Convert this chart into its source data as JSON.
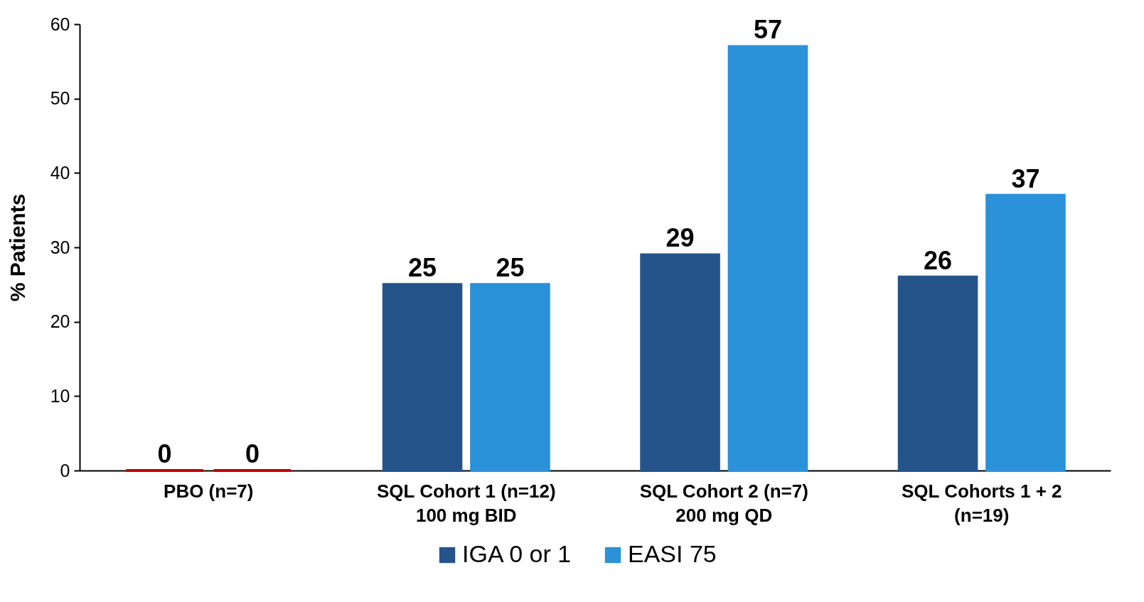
{
  "chart_data": {
    "type": "bar",
    "ylabel": "% Patients",
    "categories": [
      "PBO (n=7)",
      "SQL Cohort 1 (n=12)\n100 mg BID",
      "SQL Cohort 2 (n=7)\n200 mg QD",
      "SQL Cohorts 1 + 2\n(n=19)"
    ],
    "series": [
      {
        "name": "IGA 0 or 1",
        "color": "#25548a",
        "colors": [
          "#c00000",
          "#25548a",
          "#25548a",
          "#25548a"
        ],
        "values": [
          0,
          25,
          29,
          26
        ]
      },
      {
        "name": "EASI 75",
        "color": "#2b91d8",
        "colors": [
          "#c00000",
          "#2b91d8",
          "#2b91d8",
          "#2b91d8"
        ],
        "values": [
          0,
          25,
          57,
          37
        ]
      }
    ],
    "ylim": [
      0,
      60
    ],
    "yticks": [
      0,
      10,
      20,
      30,
      40,
      50,
      60
    ],
    "grid": false,
    "legend": "bottom",
    "data_labels": true
  }
}
